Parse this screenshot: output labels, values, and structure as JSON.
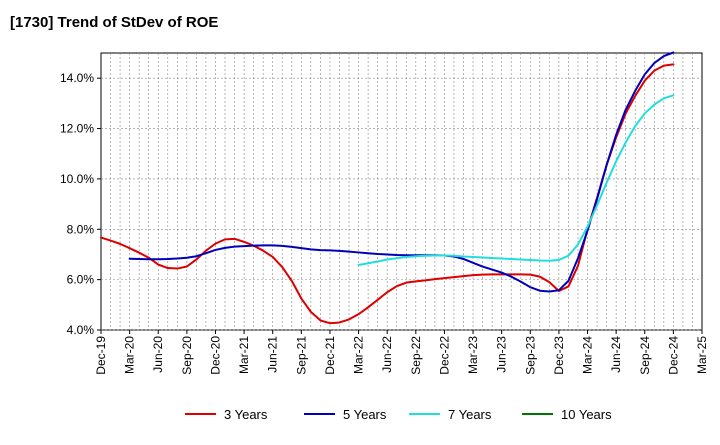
{
  "chart_data": {
    "type": "line",
    "title": "[1730]  Trend of StDev of ROE",
    "xlabel": "",
    "ylabel": "",
    "x_ticks": [
      "Dec-19",
      "Mar-20",
      "Jun-20",
      "Sep-20",
      "Dec-20",
      "Mar-21",
      "Jun-21",
      "Sep-21",
      "Dec-21",
      "Mar-22",
      "Jun-22",
      "Sep-22",
      "Dec-22",
      "Mar-23",
      "Jun-23",
      "Sep-23",
      "Dec-23",
      "Mar-24",
      "Jun-24",
      "Sep-24",
      "Dec-24",
      "Mar-25"
    ],
    "y_ticks": [
      "4.0%",
      "6.0%",
      "8.0%",
      "10.0%",
      "12.0%",
      "14.0%"
    ],
    "ylim": [
      4.0,
      15.0
    ],
    "y_unit": "%",
    "grid": true,
    "legend_position": "bottom",
    "colors": {
      "3 Years": "#dd0000",
      "5 Years": "#0000bb",
      "7 Years": "#22dddd",
      "10 Years": "#007700"
    },
    "series": [
      {
        "name": "3 Years",
        "color": "#dd0000",
        "points": [
          [
            "Dec-19",
            7.67
          ],
          [
            "Jan-20",
            7.55
          ],
          [
            "Feb-20",
            7.42
          ],
          [
            "Mar-20",
            7.25
          ],
          [
            "Apr-20",
            7.07
          ],
          [
            "May-20",
            6.87
          ],
          [
            "Jun-20",
            6.6
          ],
          [
            "Jul-20",
            6.46
          ],
          [
            "Aug-20",
            6.44
          ],
          [
            "Sep-20",
            6.52
          ],
          [
            "Oct-20",
            6.8
          ],
          [
            "Nov-20",
            7.15
          ],
          [
            "Dec-20",
            7.43
          ],
          [
            "Jan-21",
            7.6
          ],
          [
            "Feb-21",
            7.62
          ],
          [
            "Mar-21",
            7.5
          ],
          [
            "Apr-21",
            7.35
          ],
          [
            "May-21",
            7.15
          ],
          [
            "Jun-21",
            6.9
          ],
          [
            "Jul-21",
            6.5
          ],
          [
            "Aug-21",
            5.95
          ],
          [
            "Sep-21",
            5.25
          ],
          [
            "Oct-21",
            4.72
          ],
          [
            "Nov-21",
            4.38
          ],
          [
            "Dec-21",
            4.27
          ],
          [
            "Jan-22",
            4.3
          ],
          [
            "Feb-22",
            4.42
          ],
          [
            "Mar-22",
            4.63
          ],
          [
            "Apr-22",
            4.9
          ],
          [
            "May-22",
            5.2
          ],
          [
            "Jun-22",
            5.5
          ],
          [
            "Jul-22",
            5.74
          ],
          [
            "Aug-22",
            5.88
          ],
          [
            "Sep-22",
            5.93
          ],
          [
            "Oct-22",
            5.97
          ],
          [
            "Nov-22",
            6.02
          ],
          [
            "Dec-22",
            6.06
          ],
          [
            "Jan-23",
            6.1
          ],
          [
            "Feb-23",
            6.14
          ],
          [
            "Mar-23",
            6.18
          ],
          [
            "Apr-23",
            6.2
          ],
          [
            "May-23",
            6.21
          ],
          [
            "Jun-23",
            6.21
          ],
          [
            "Jul-23",
            6.21
          ],
          [
            "Aug-23",
            6.21
          ],
          [
            "Sep-23",
            6.2
          ],
          [
            "Oct-23",
            6.12
          ],
          [
            "Nov-23",
            5.9
          ],
          [
            "Dec-23",
            5.55
          ],
          [
            "Jan-24",
            5.73
          ],
          [
            "Feb-24",
            6.55
          ],
          [
            "Mar-24",
            8.0
          ],
          [
            "Apr-24",
            9.25
          ],
          [
            "May-24",
            10.55
          ],
          [
            "Jun-24",
            11.65
          ],
          [
            "Jul-24",
            12.6
          ],
          [
            "Aug-24",
            13.3
          ],
          [
            "Sep-24",
            13.9
          ],
          [
            "Oct-24",
            14.3
          ],
          [
            "Nov-24",
            14.5
          ],
          [
            "Dec-24",
            14.55
          ]
        ]
      },
      {
        "name": "5 Years",
        "color": "#0000bb",
        "points": [
          [
            "Mar-20",
            6.83
          ],
          [
            "Apr-20",
            6.82
          ],
          [
            "May-20",
            6.81
          ],
          [
            "Jun-20",
            6.81
          ],
          [
            "Jul-20",
            6.82
          ],
          [
            "Aug-20",
            6.84
          ],
          [
            "Sep-20",
            6.87
          ],
          [
            "Oct-20",
            6.93
          ],
          [
            "Nov-20",
            7.05
          ],
          [
            "Dec-20",
            7.18
          ],
          [
            "Jan-21",
            7.26
          ],
          [
            "Feb-21",
            7.31
          ],
          [
            "Mar-21",
            7.33
          ],
          [
            "Apr-21",
            7.35
          ],
          [
            "May-21",
            7.36
          ],
          [
            "Jun-21",
            7.36
          ],
          [
            "Jul-21",
            7.34
          ],
          [
            "Aug-21",
            7.3
          ],
          [
            "Sep-21",
            7.25
          ],
          [
            "Oct-21",
            7.2
          ],
          [
            "Nov-21",
            7.17
          ],
          [
            "Dec-21",
            7.16
          ],
          [
            "Jan-22",
            7.14
          ],
          [
            "Feb-22",
            7.11
          ],
          [
            "Mar-22",
            7.08
          ],
          [
            "Apr-22",
            7.05
          ],
          [
            "May-22",
            7.02
          ],
          [
            "Jun-22",
            7.0
          ],
          [
            "Jul-22",
            6.98
          ],
          [
            "Aug-22",
            6.97
          ],
          [
            "Sep-22",
            6.97
          ],
          [
            "Oct-22",
            6.97
          ],
          [
            "Nov-22",
            6.97
          ],
          [
            "Dec-22",
            6.96
          ],
          [
            "Jan-23",
            6.92
          ],
          [
            "Feb-23",
            6.82
          ],
          [
            "Mar-23",
            6.67
          ],
          [
            "Apr-23",
            6.52
          ],
          [
            "May-23",
            6.4
          ],
          [
            "Jun-23",
            6.28
          ],
          [
            "Jul-23",
            6.12
          ],
          [
            "Aug-23",
            5.92
          ],
          [
            "Sep-23",
            5.7
          ],
          [
            "Oct-23",
            5.56
          ],
          [
            "Nov-23",
            5.53
          ],
          [
            "Dec-23",
            5.58
          ],
          [
            "Jan-24",
            5.95
          ],
          [
            "Feb-24",
            6.85
          ],
          [
            "Mar-24",
            7.95
          ],
          [
            "Apr-24",
            9.2
          ],
          [
            "May-24",
            10.55
          ],
          [
            "Jun-24",
            11.75
          ],
          [
            "Jul-24",
            12.75
          ],
          [
            "Aug-24",
            13.5
          ],
          [
            "Sep-24",
            14.15
          ],
          [
            "Oct-24",
            14.6
          ],
          [
            "Nov-24",
            14.88
          ],
          [
            "Dec-24",
            15.02
          ]
        ]
      },
      {
        "name": "7 Years",
        "color": "#22dddd",
        "points": [
          [
            "Mar-22",
            6.58
          ],
          [
            "Apr-22",
            6.65
          ],
          [
            "May-22",
            6.72
          ],
          [
            "Jun-22",
            6.8
          ],
          [
            "Jul-22",
            6.85
          ],
          [
            "Aug-22",
            6.9
          ],
          [
            "Sep-22",
            6.93
          ],
          [
            "Oct-22",
            6.95
          ],
          [
            "Nov-22",
            6.96
          ],
          [
            "Dec-22",
            6.96
          ],
          [
            "Jan-23",
            6.95
          ],
          [
            "Feb-23",
            6.92
          ],
          [
            "Mar-23",
            6.9
          ],
          [
            "Apr-23",
            6.88
          ],
          [
            "May-23",
            6.86
          ],
          [
            "Jun-23",
            6.84
          ],
          [
            "Jul-23",
            6.82
          ],
          [
            "Aug-23",
            6.8
          ],
          [
            "Sep-23",
            6.78
          ],
          [
            "Oct-23",
            6.76
          ],
          [
            "Nov-23",
            6.75
          ],
          [
            "Dec-23",
            6.78
          ],
          [
            "Jan-24",
            6.95
          ],
          [
            "Feb-24",
            7.4
          ],
          [
            "Mar-24",
            8.1
          ],
          [
            "Apr-24",
            8.95
          ],
          [
            "May-24",
            9.85
          ],
          [
            "Jun-24",
            10.7
          ],
          [
            "Jul-24",
            11.45
          ],
          [
            "Aug-24",
            12.1
          ],
          [
            "Sep-24",
            12.6
          ],
          [
            "Oct-24",
            12.95
          ],
          [
            "Nov-24",
            13.2
          ],
          [
            "Dec-24",
            13.32
          ]
        ]
      },
      {
        "name": "10 Years",
        "color": "#007700",
        "points": []
      }
    ]
  }
}
